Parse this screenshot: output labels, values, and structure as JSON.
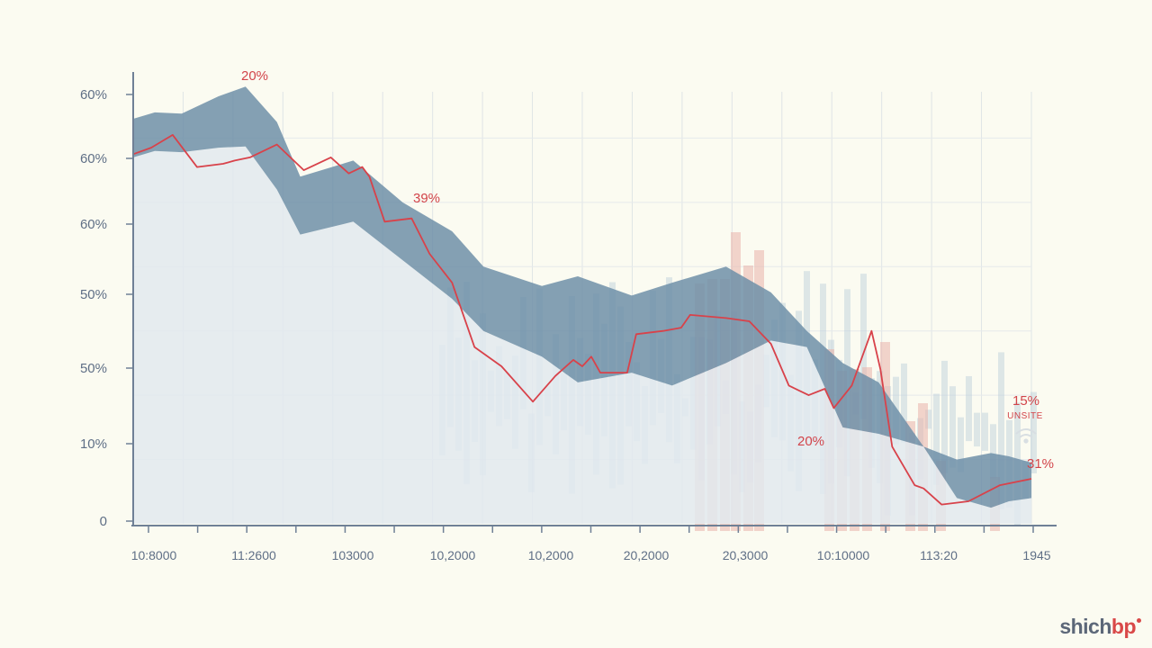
{
  "chart_data": {
    "type": "area",
    "title": "",
    "xlabel": "",
    "ylabel": "",
    "y_tick_labels": [
      "0",
      "10%",
      "50%",
      "50%",
      "60%",
      "60%",
      "60%"
    ],
    "x_tick_labels": [
      "10:8000",
      "11:2600",
      "103000",
      "10,2000",
      "10,2000",
      "20,2000",
      "20,3000",
      "10:10000",
      "113:20",
      "1945"
    ],
    "grid": true,
    "legend": "none",
    "colors": {
      "band": "#6f8fa8",
      "base_area": "#e2e9ee",
      "line": "#d8424a",
      "axis": "#6f8096",
      "bars_blue": "#b9cdd9",
      "bars_red": "#eab3aa"
    },
    "series": [
      {
        "role": "band-upper",
        "points": [
          [
            0.0,
            63.0
          ],
          [
            0.024,
            64.0
          ],
          [
            0.054,
            63.8
          ],
          [
            0.095,
            66.5
          ],
          [
            0.125,
            68.0
          ],
          [
            0.16,
            62.5
          ],
          [
            0.186,
            54.0
          ],
          [
            0.245,
            56.5
          ],
          [
            0.3,
            50.0
          ],
          [
            0.355,
            45.5
          ],
          [
            0.39,
            40.0
          ],
          [
            0.455,
            37.0
          ],
          [
            0.495,
            38.5
          ],
          [
            0.555,
            35.5
          ],
          [
            0.6,
            37.5
          ],
          [
            0.66,
            40.0
          ],
          [
            0.71,
            36.0
          ],
          [
            0.75,
            30.0
          ],
          [
            0.79,
            25.0
          ],
          [
            0.83,
            22.0
          ],
          [
            0.88,
            12.0
          ],
          [
            0.917,
            10.0
          ],
          [
            0.955,
            11.0
          ],
          [
            0.975,
            10.5
          ],
          [
            1.0,
            9.5
          ]
        ]
      },
      {
        "role": "band-lower",
        "points": [
          [
            0.0,
            57.0
          ],
          [
            0.024,
            58.0
          ],
          [
            0.054,
            57.8
          ],
          [
            0.095,
            58.5
          ],
          [
            0.125,
            58.7
          ],
          [
            0.16,
            52.0
          ],
          [
            0.186,
            45.0
          ],
          [
            0.245,
            47.0
          ],
          [
            0.3,
            41.0
          ],
          [
            0.355,
            35.0
          ],
          [
            0.39,
            30.0
          ],
          [
            0.455,
            26.0
          ],
          [
            0.495,
            22.0
          ],
          [
            0.555,
            23.5
          ],
          [
            0.6,
            21.5
          ],
          [
            0.66,
            25.0
          ],
          [
            0.71,
            28.5
          ],
          [
            0.75,
            27.5
          ],
          [
            0.79,
            15.0
          ],
          [
            0.83,
            14.0
          ],
          [
            0.88,
            12.0
          ],
          [
            0.917,
            4.0
          ],
          [
            0.955,
            2.5
          ],
          [
            0.975,
            3.5
          ],
          [
            1.0,
            4.0
          ]
        ]
      },
      {
        "role": "red-line",
        "points": [
          [
            0.0,
            57.5
          ],
          [
            0.02,
            58.5
          ],
          [
            0.044,
            60.5
          ],
          [
            0.071,
            55.5
          ],
          [
            0.1,
            56.0
          ],
          [
            0.113,
            56.5
          ],
          [
            0.13,
            57.0
          ],
          [
            0.16,
            59.0
          ],
          [
            0.19,
            55.0
          ],
          [
            0.22,
            57.0
          ],
          [
            0.24,
            54.5
          ],
          [
            0.255,
            55.5
          ],
          [
            0.263,
            54.0
          ],
          [
            0.28,
            47.0
          ],
          [
            0.31,
            47.5
          ],
          [
            0.33,
            42.0
          ],
          [
            0.355,
            37.5
          ],
          [
            0.38,
            27.5
          ],
          [
            0.41,
            24.5
          ],
          [
            0.445,
            19.0
          ],
          [
            0.47,
            23.0
          ],
          [
            0.49,
            25.5
          ],
          [
            0.5,
            24.5
          ],
          [
            0.51,
            26.0
          ],
          [
            0.52,
            23.5
          ],
          [
            0.55,
            23.5
          ],
          [
            0.56,
            29.5
          ],
          [
            0.59,
            30.0
          ],
          [
            0.61,
            30.5
          ],
          [
            0.62,
            32.5
          ],
          [
            0.66,
            32.0
          ],
          [
            0.686,
            31.5
          ],
          [
            0.71,
            28.0
          ],
          [
            0.73,
            21.5
          ],
          [
            0.752,
            20.0
          ],
          [
            0.77,
            21.0
          ],
          [
            0.78,
            18.0
          ],
          [
            0.8,
            21.5
          ],
          [
            0.822,
            30.0
          ],
          [
            0.832,
            24.0
          ],
          [
            0.845,
            12.0
          ],
          [
            0.87,
            6.0
          ],
          [
            0.88,
            5.5
          ],
          [
            0.9,
            3.0
          ],
          [
            0.93,
            3.5
          ],
          [
            0.965,
            6.0
          ],
          [
            1.0,
            7.0
          ]
        ]
      }
    ],
    "annotations": [
      "20%",
      "39%",
      "20%",
      "15%",
      "UNSITE",
      "31%"
    ]
  },
  "watermark": {
    "part1": "shich",
    "part2": "bp"
  }
}
